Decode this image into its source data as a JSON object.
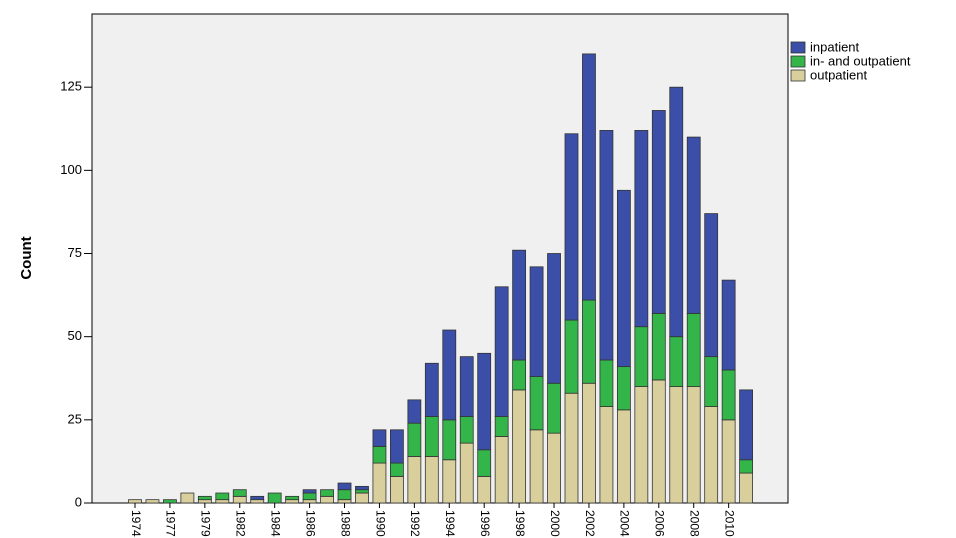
{
  "chart_data": {
    "type": "bar",
    "stacked": true,
    "y_label": "Count",
    "categories": [
      "1974",
      null,
      "1977",
      null,
      "1979",
      null,
      "1982",
      null,
      "1984",
      null,
      "1986",
      null,
      "1988",
      null,
      "1990",
      null,
      "1992",
      null,
      "1994",
      null,
      "1996",
      null,
      "1998",
      null,
      "2000",
      null,
      "2002",
      null,
      "2004",
      null,
      "2006",
      null,
      "2008",
      null,
      "2010",
      null
    ],
    "series": [
      {
        "name": "inpatient",
        "color": "#3b4fa8",
        "values": [
          0,
          0,
          0,
          0,
          0,
          0,
          0,
          1,
          0,
          0,
          1,
          0,
          2,
          1,
          5,
          10,
          7,
          16,
          27,
          18,
          29,
          39,
          33,
          33,
          39,
          56,
          74,
          69,
          53,
          59,
          61,
          75,
          53,
          43,
          27,
          21
        ]
      },
      {
        "name": "in- and outpatient",
        "color": "#33b54a",
        "values": [
          0,
          0,
          1,
          0,
          1,
          2,
          2,
          0,
          3,
          1,
          2,
          2,
          3,
          1,
          5,
          4,
          10,
          12,
          12,
          8,
          8,
          6,
          9,
          16,
          15,
          22,
          25,
          14,
          13,
          18,
          20,
          15,
          22,
          15,
          15,
          4
        ]
      },
      {
        "name": "outpatient",
        "color": "#d9cf9c",
        "values": [
          1,
          1,
          0,
          3,
          1,
          1,
          2,
          1,
          0,
          1,
          1,
          2,
          1,
          3,
          12,
          8,
          14,
          14,
          13,
          18,
          8,
          20,
          34,
          22,
          21,
          33,
          36,
          29,
          28,
          35,
          37,
          35,
          35,
          29,
          25,
          9
        ]
      }
    ],
    "ylim": [
      0,
      147
    ],
    "yticks": [
      0,
      25,
      50,
      75,
      100,
      125
    ],
    "legend": "top-right"
  }
}
